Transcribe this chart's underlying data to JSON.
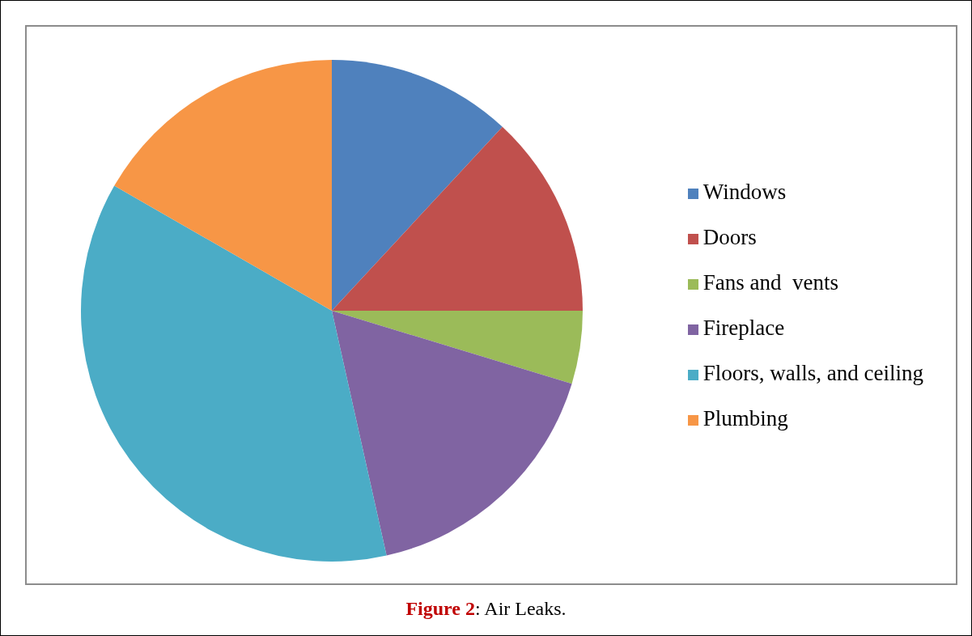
{
  "chart_data": {
    "type": "pie",
    "title": "Figure 2: Air Leaks.",
    "categories": [
      "Windows",
      "Doors",
      "Fans and  vents",
      "Fireplace",
      "Floors, walls, and ceiling",
      "Plumbing"
    ],
    "values": [
      11.9,
      13.1,
      4.7,
      16.8,
      36.8,
      16.7
    ],
    "colors": [
      "#4f81bd",
      "#c0504d",
      "#9bbb59",
      "#8064a2",
      "#4bacc6",
      "#f79646"
    ],
    "legend": "right"
  }
}
